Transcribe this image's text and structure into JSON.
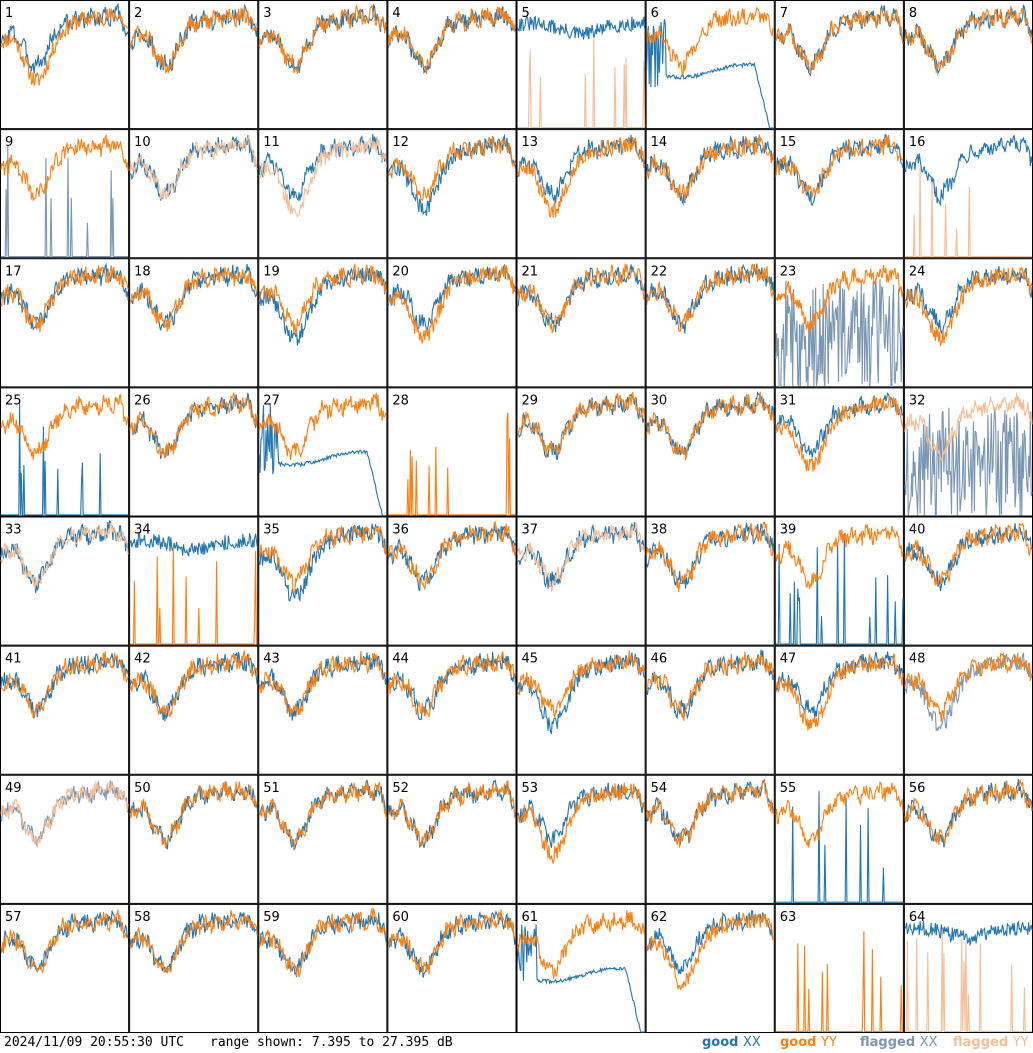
{
  "timestamp": "2024/11/09 20:55:30 UTC",
  "range_text": "range shown: 7.395 to 27.395 dB",
  "legend": [
    {
      "prefix": "good",
      "pol": "XX",
      "color": "#1f77b4"
    },
    {
      "prefix": "good",
      "pol": "YY",
      "color": "#ff7f0e"
    },
    {
      "prefix": "flagged",
      "pol": "XX",
      "color": "#7a97b3"
    },
    {
      "prefix": "flagged",
      "pol": "YY",
      "color": "#f6be94"
    }
  ],
  "colors": {
    "good_xx": "#1f77b4",
    "good_yy": "#ff7f0e",
    "flagged_xx": "#7a97b3",
    "flagged_yy": "#f6be94",
    "border": "#000000"
  },
  "chart_data": {
    "type": "line",
    "description": "8x8 grid of per-tile power spectra; y range 7.395 to 27.395 dB; no axis tick labels shown",
    "ylim": [
      7.395,
      27.395
    ],
    "series_names": [
      "good XX",
      "good YY",
      "flagged XX",
      "flagged YY"
    ],
    "panels": [
      {
        "label": "1",
        "xx": "good",
        "yy": "good",
        "xx_shape": "normal",
        "yy_shape": "lowdip"
      },
      {
        "label": "2",
        "xx": "good",
        "yy": "good",
        "xx_shape": "normal",
        "yy_shape": "normal"
      },
      {
        "label": "3",
        "xx": "good",
        "yy": "good",
        "xx_shape": "normal",
        "yy_shape": "normal"
      },
      {
        "label": "4",
        "xx": "good",
        "yy": "good",
        "xx_shape": "normal",
        "yy_shape": "normal"
      },
      {
        "label": "5",
        "xx": "good",
        "yy": "flagged",
        "xx_shape": "high",
        "yy_shape": "spikes"
      },
      {
        "label": "6",
        "xx": "good",
        "yy": "good",
        "xx_shape": "drop",
        "yy_shape": "normal"
      },
      {
        "label": "7",
        "xx": "good",
        "yy": "good",
        "xx_shape": "normal",
        "yy_shape": "normal"
      },
      {
        "label": "8",
        "xx": "good",
        "yy": "good",
        "xx_shape": "normal",
        "yy_shape": "normal"
      },
      {
        "label": "9",
        "xx": "flagged",
        "yy": "good",
        "xx_shape": "spikes",
        "yy_shape": "normal"
      },
      {
        "label": "10",
        "xx": "good",
        "yy": "flagged",
        "xx_shape": "normal",
        "yy_shape": "normal"
      },
      {
        "label": "11",
        "xx": "good",
        "yy": "flagged",
        "xx_shape": "normal",
        "yy_shape": "lowdip"
      },
      {
        "label": "12",
        "xx": "good",
        "yy": "good",
        "xx_shape": "lowdip",
        "yy_shape": "normal"
      },
      {
        "label": "13",
        "xx": "good",
        "yy": "good",
        "xx_shape": "normal",
        "yy_shape": "lowdip"
      },
      {
        "label": "14",
        "xx": "good",
        "yy": "good",
        "xx_shape": "normal",
        "yy_shape": "normal"
      },
      {
        "label": "15",
        "xx": "good",
        "yy": "good",
        "xx_shape": "normal",
        "yy_shape": "normal"
      },
      {
        "label": "16",
        "xx": "good",
        "yy": "flagged",
        "xx_shape": "normal",
        "yy_shape": "spikes"
      },
      {
        "label": "17",
        "xx": "good",
        "yy": "good",
        "xx_shape": "normal",
        "yy_shape": "normal"
      },
      {
        "label": "18",
        "xx": "good",
        "yy": "good",
        "xx_shape": "normal",
        "yy_shape": "normal"
      },
      {
        "label": "19",
        "xx": "good",
        "yy": "good",
        "xx_shape": "lowdip",
        "yy_shape": "normal"
      },
      {
        "label": "20",
        "xx": "good",
        "yy": "good",
        "xx_shape": "normal",
        "yy_shape": "lowdip"
      },
      {
        "label": "21",
        "xx": "good",
        "yy": "good",
        "xx_shape": "normal",
        "yy_shape": "normal"
      },
      {
        "label": "22",
        "xx": "good",
        "yy": "good",
        "xx_shape": "normal",
        "yy_shape": "normal"
      },
      {
        "label": "23",
        "xx": "flagged",
        "yy": "good",
        "xx_shape": "noisy",
        "yy_shape": "normal"
      },
      {
        "label": "24",
        "xx": "good",
        "yy": "good",
        "xx_shape": "normal",
        "yy_shape": "lowdip"
      },
      {
        "label": "25",
        "xx": "good",
        "yy": "good",
        "xx_shape": "spikes",
        "yy_shape": "normal"
      },
      {
        "label": "26",
        "xx": "good",
        "yy": "good",
        "xx_shape": "normal",
        "yy_shape": "normal"
      },
      {
        "label": "27",
        "xx": "good",
        "yy": "good",
        "xx_shape": "drop",
        "yy_shape": "normal"
      },
      {
        "label": "28",
        "xx": "good",
        "yy": "good",
        "xx_shape": "none",
        "yy_shape": "spikes"
      },
      {
        "label": "29",
        "xx": "good",
        "yy": "good",
        "xx_shape": "normal",
        "yy_shape": "normal"
      },
      {
        "label": "30",
        "xx": "good",
        "yy": "good",
        "xx_shape": "normal",
        "yy_shape": "normal"
      },
      {
        "label": "31",
        "xx": "good",
        "yy": "good",
        "xx_shape": "normal",
        "yy_shape": "lowdip"
      },
      {
        "label": "32",
        "xx": "flagged",
        "yy": "flagged",
        "xx_shape": "noisy",
        "yy_shape": "normal"
      },
      {
        "label": "33",
        "xx": "good",
        "yy": "flagged",
        "xx_shape": "normal",
        "yy_shape": "normal"
      },
      {
        "label": "34",
        "xx": "good",
        "yy": "good",
        "xx_shape": "high",
        "yy_shape": "spikes"
      },
      {
        "label": "35",
        "xx": "good",
        "yy": "good",
        "xx_shape": "lowdip",
        "yy_shape": "normal"
      },
      {
        "label": "36",
        "xx": "good",
        "yy": "good",
        "xx_shape": "normal",
        "yy_shape": "normal"
      },
      {
        "label": "37",
        "xx": "good",
        "yy": "flagged",
        "xx_shape": "normal",
        "yy_shape": "normal"
      },
      {
        "label": "38",
        "xx": "good",
        "yy": "good",
        "xx_shape": "normal",
        "yy_shape": "normal"
      },
      {
        "label": "39",
        "xx": "good",
        "yy": "good",
        "xx_shape": "spikes",
        "yy_shape": "normal"
      },
      {
        "label": "40",
        "xx": "good",
        "yy": "good",
        "xx_shape": "normal",
        "yy_shape": "normal"
      },
      {
        "label": "41",
        "xx": "good",
        "yy": "good",
        "xx_shape": "normal",
        "yy_shape": "normal"
      },
      {
        "label": "42",
        "xx": "good",
        "yy": "good",
        "xx_shape": "normal",
        "yy_shape": "normal"
      },
      {
        "label": "43",
        "xx": "good",
        "yy": "good",
        "xx_shape": "normal",
        "yy_shape": "normal"
      },
      {
        "label": "44",
        "xx": "good",
        "yy": "good",
        "xx_shape": "normal",
        "yy_shape": "normal"
      },
      {
        "label": "45",
        "xx": "good",
        "yy": "good",
        "xx_shape": "lowdip",
        "yy_shape": "normal"
      },
      {
        "label": "46",
        "xx": "good",
        "yy": "good",
        "xx_shape": "normal",
        "yy_shape": "normal"
      },
      {
        "label": "47",
        "xx": "good",
        "yy": "good",
        "xx_shape": "normal",
        "yy_shape": "lowdip"
      },
      {
        "label": "48",
        "xx": "flagged",
        "yy": "good",
        "xx_shape": "lowdip",
        "yy_shape": "normal"
      },
      {
        "label": "49",
        "xx": "flagged",
        "yy": "flagged",
        "xx_shape": "normal",
        "yy_shape": "normal"
      },
      {
        "label": "50",
        "xx": "good",
        "yy": "good",
        "xx_shape": "normal",
        "yy_shape": "normal"
      },
      {
        "label": "51",
        "xx": "good",
        "yy": "good",
        "xx_shape": "normal",
        "yy_shape": "normal"
      },
      {
        "label": "52",
        "xx": "good",
        "yy": "good",
        "xx_shape": "normal",
        "yy_shape": "normal"
      },
      {
        "label": "53",
        "xx": "good",
        "yy": "good",
        "xx_shape": "normal",
        "yy_shape": "lowdip"
      },
      {
        "label": "54",
        "xx": "good",
        "yy": "good",
        "xx_shape": "normal",
        "yy_shape": "normal"
      },
      {
        "label": "55",
        "xx": "good",
        "yy": "good",
        "xx_shape": "spikes",
        "yy_shape": "normal"
      },
      {
        "label": "56",
        "xx": "good",
        "yy": "good",
        "xx_shape": "normal",
        "yy_shape": "normal"
      },
      {
        "label": "57",
        "xx": "good",
        "yy": "good",
        "xx_shape": "normal",
        "yy_shape": "normal"
      },
      {
        "label": "58",
        "xx": "good",
        "yy": "good",
        "xx_shape": "normal",
        "yy_shape": "normal"
      },
      {
        "label": "59",
        "xx": "good",
        "yy": "good",
        "xx_shape": "normal",
        "yy_shape": "normal"
      },
      {
        "label": "60",
        "xx": "good",
        "yy": "good",
        "xx_shape": "normal",
        "yy_shape": "normal"
      },
      {
        "label": "61",
        "xx": "good",
        "yy": "good",
        "xx_shape": "drop",
        "yy_shape": "normal"
      },
      {
        "label": "62",
        "xx": "good",
        "yy": "good",
        "xx_shape": "normal",
        "yy_shape": "lowdip"
      },
      {
        "label": "63",
        "xx": "good",
        "yy": "good",
        "xx_shape": "none",
        "yy_shape": "spikes"
      },
      {
        "label": "64",
        "xx": "good",
        "yy": "flagged",
        "xx_shape": "high",
        "yy_shape": "spikes"
      }
    ]
  }
}
